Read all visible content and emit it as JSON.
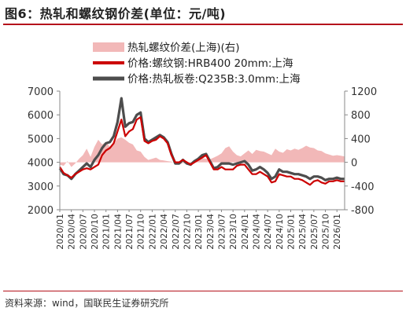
{
  "figure": {
    "title": "图6：热轧和螺纹钢价差(单位：元/吨)",
    "source": "资料来源：wind，国联民生证券研究所"
  },
  "chart_data": {
    "type": "line",
    "legend": {
      "placement": "top",
      "entries": [
        "热轧螺纹价差(上海)(右)",
        "价格:螺纹钢:HRB400 20mm:上海",
        "价格:热轧板卷:Q235B:3.0mm:上海"
      ]
    },
    "x_range": [
      "2020-01",
      "2026-03"
    ],
    "x_ticks": [
      "2020/01",
      "2020/04",
      "2020/07",
      "2020/10",
      "2021/01",
      "2021/04",
      "2021/07",
      "2021/10",
      "2022/01",
      "2022/04",
      "2022/07",
      "2022/10",
      "2023/01",
      "2023/04",
      "2023/07",
      "2023/10",
      "2024/01",
      "2024/04",
      "2024/07",
      "2024/10",
      "2025/01",
      "2025/04",
      "2025/07",
      "2025/10",
      "2026/01"
    ],
    "y_left": {
      "ylim": [
        2000,
        7000
      ],
      "ticks": [
        2000,
        3000,
        4000,
        5000,
        6000,
        7000
      ]
    },
    "y_right": {
      "ylim": [
        -800,
        1200
      ],
      "ticks": [
        -800,
        -400,
        0,
        400,
        800,
        1200
      ]
    },
    "grid": false,
    "colors": {
      "rebar": "#cc0000",
      "hrc": "#4d4d4d",
      "spread": "#f2b8b8"
    },
    "series": [
      {
        "name": "热轧螺纹价差(上海)(右)",
        "axis": "right",
        "type": "area",
        "x": [
          "2020-01",
          "2020-02",
          "2020-03",
          "2020-04",
          "2020-05",
          "2020-06",
          "2020-07",
          "2020-08",
          "2020-09",
          "2020-10",
          "2020-11",
          "2020-12",
          "2021-01",
          "2021-02",
          "2021-03",
          "2021-04",
          "2021-05",
          "2021-06",
          "2021-07",
          "2021-08",
          "2021-09",
          "2021-10",
          "2021-11",
          "2021-12",
          "2022-01",
          "2022-02",
          "2022-03",
          "2022-04",
          "2022-05",
          "2022-06",
          "2022-07",
          "2022-08",
          "2022-09",
          "2022-10",
          "2022-11",
          "2022-12",
          "2023-01",
          "2023-02",
          "2023-03",
          "2023-04",
          "2023-05",
          "2023-06",
          "2023-07",
          "2023-08",
          "2023-09",
          "2023-10",
          "2023-11",
          "2023-12",
          "2024-01",
          "2024-02",
          "2024-03",
          "2024-04",
          "2024-05",
          "2024-06",
          "2024-07",
          "2024-08",
          "2024-09",
          "2024-10",
          "2024-11",
          "2024-12",
          "2025-01",
          "2025-02",
          "2025-03",
          "2025-04",
          "2025-05",
          "2025-06",
          "2025-07",
          "2025-08",
          "2025-09",
          "2025-10",
          "2025-11",
          "2025-12",
          "2026-01",
          "2026-02",
          "2026-03"
        ],
        "values": [
          -40,
          -60,
          20,
          -80,
          -20,
          60,
          120,
          230,
          90,
          260,
          380,
          300,
          340,
          260,
          320,
          400,
          420,
          380,
          330,
          300,
          200,
          180,
          90,
          40,
          60,
          80,
          40,
          30,
          20,
          10,
          -20,
          -40,
          -10,
          -30,
          -20,
          40,
          60,
          70,
          60,
          50,
          80,
          110,
          150,
          240,
          270,
          180,
          120,
          100,
          150,
          200,
          140,
          210,
          190,
          180,
          150,
          120,
          230,
          180,
          160,
          220,
          200,
          230,
          210,
          240,
          280,
          250,
          240,
          200,
          190,
          150,
          130,
          110,
          120,
          110,
          100
        ]
      },
      {
        "name": "价格:螺纹钢:HRB400 20mm:上海",
        "axis": "left",
        "x": [
          "2020-01",
          "2020-02",
          "2020-03",
          "2020-04",
          "2020-05",
          "2020-06",
          "2020-07",
          "2020-08",
          "2020-09",
          "2020-10",
          "2020-11",
          "2020-12",
          "2021-01",
          "2021-02",
          "2021-03",
          "2021-04",
          "2021-05",
          "2021-06",
          "2021-07",
          "2021-08",
          "2021-09",
          "2021-10",
          "2021-11",
          "2021-12",
          "2022-01",
          "2022-02",
          "2022-03",
          "2022-04",
          "2022-05",
          "2022-06",
          "2022-07",
          "2022-08",
          "2022-09",
          "2022-10",
          "2022-11",
          "2022-12",
          "2023-01",
          "2023-02",
          "2023-03",
          "2023-04",
          "2023-05",
          "2023-06",
          "2023-07",
          "2023-08",
          "2023-09",
          "2023-10",
          "2023-11",
          "2023-12",
          "2024-01",
          "2024-02",
          "2024-03",
          "2024-04",
          "2024-05",
          "2024-06",
          "2024-07",
          "2024-08",
          "2024-09",
          "2024-10",
          "2024-11",
          "2024-12",
          "2025-01",
          "2025-02",
          "2025-03",
          "2025-04",
          "2025-05",
          "2025-06",
          "2025-07",
          "2025-08",
          "2025-09",
          "2025-10",
          "2025-11",
          "2025-12",
          "2026-01",
          "2026-02",
          "2026-03"
        ],
        "values": [
          3800,
          3550,
          3450,
          3350,
          3500,
          3600,
          3700,
          3750,
          3700,
          3800,
          3900,
          4300,
          4500,
          4600,
          4800,
          5300,
          5800,
          5100,
          5300,
          5400,
          5800,
          5900,
          4900,
          4800,
          4900,
          4950,
          5100,
          5000,
          4800,
          4300,
          4000,
          4000,
          4100,
          4000,
          3900,
          4000,
          4100,
          4200,
          4300,
          4000,
          3700,
          3700,
          3800,
          3700,
          3700,
          3700,
          3850,
          3900,
          3900,
          3700,
          3500,
          3500,
          3600,
          3500,
          3400,
          3150,
          3200,
          3500,
          3450,
          3400,
          3400,
          3300,
          3300,
          3250,
          3150,
          3050,
          3200,
          3250,
          3150,
          3100,
          3200,
          3200,
          3250,
          3200,
          3200
        ]
      },
      {
        "name": "价格:热轧板卷:Q235B:3.0mm:上海",
        "axis": "left",
        "x": [
          "2020-01",
          "2020-02",
          "2020-03",
          "2020-04",
          "2020-05",
          "2020-06",
          "2020-07",
          "2020-08",
          "2020-09",
          "2020-10",
          "2020-11",
          "2020-12",
          "2021-01",
          "2021-02",
          "2021-03",
          "2021-04",
          "2021-05",
          "2021-06",
          "2021-07",
          "2021-08",
          "2021-09",
          "2021-10",
          "2021-11",
          "2021-12",
          "2022-01",
          "2022-02",
          "2022-03",
          "2022-04",
          "2022-05",
          "2022-06",
          "2022-07",
          "2022-08",
          "2022-09",
          "2022-10",
          "2022-11",
          "2022-12",
          "2023-01",
          "2023-02",
          "2023-03",
          "2023-04",
          "2023-05",
          "2023-06",
          "2023-07",
          "2023-08",
          "2023-09",
          "2023-10",
          "2023-11",
          "2023-12",
          "2024-01",
          "2024-02",
          "2024-03",
          "2024-04",
          "2024-05",
          "2024-06",
          "2024-07",
          "2024-08",
          "2024-09",
          "2024-10",
          "2024-11",
          "2024-12",
          "2025-01",
          "2025-02",
          "2025-03",
          "2025-04",
          "2025-05",
          "2025-06",
          "2025-07",
          "2025-08",
          "2025-09",
          "2025-10",
          "2025-11",
          "2025-12",
          "2026-01",
          "2026-02",
          "2026-03"
        ],
        "values": [
          3750,
          3500,
          3450,
          3300,
          3500,
          3650,
          3800,
          3950,
          3800,
          4100,
          4300,
          4600,
          4800,
          4850,
          5100,
          5700,
          6700,
          5500,
          5650,
          5700,
          6000,
          6100,
          5000,
          4850,
          4950,
          5050,
          5150,
          5050,
          4850,
          4350,
          3950,
          3950,
          4100,
          3950,
          3900,
          4050,
          4150,
          4300,
          4350,
          4050,
          3750,
          3800,
          3950,
          3950,
          3950,
          3900,
          3950,
          4000,
          4050,
          3900,
          3650,
          3700,
          3800,
          3700,
          3550,
          3300,
          3400,
          3700,
          3600,
          3600,
          3550,
          3500,
          3500,
          3450,
          3400,
          3300,
          3400,
          3400,
          3350,
          3250,
          3300,
          3300,
          3350,
          3300,
          3300
        ]
      }
    ]
  }
}
